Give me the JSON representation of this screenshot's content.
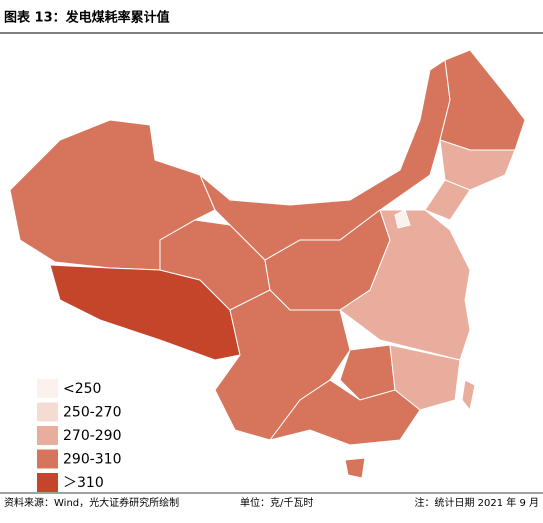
{
  "header": {
    "title": "图表 13：发电煤耗率累计值"
  },
  "legend": {
    "items": [
      {
        "label": "<250",
        "color": "#fbf1ed"
      },
      {
        "label": "250-270",
        "color": "#f5dcd3"
      },
      {
        "label": "270-290",
        "color": "#e8ad9c"
      },
      {
        "label": "290-310",
        "color": "#d6745c"
      },
      {
        "label": "＞310",
        "color": "#c4452a"
      }
    ]
  },
  "footer": {
    "source": "资料来源：Wind，光大证券研究所绘制",
    "unit": "单位：克/千瓦时",
    "note": "注：统计日期 2021 年 9 月"
  }
}
